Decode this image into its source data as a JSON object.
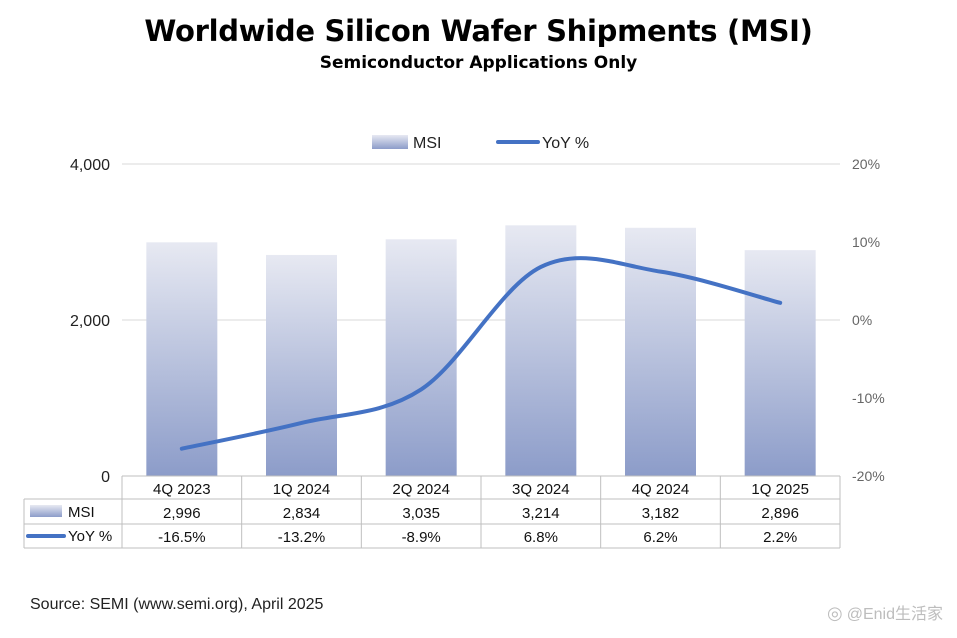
{
  "title": "Worldwide Silicon Wafer Shipments (MSI)",
  "subtitle": "Semiconductor Applications Only",
  "source": "Source: SEMI (www.semi.org), April 2025",
  "watermark": "@Enid生活家",
  "colors": {
    "bar_top": "#e7e9f2",
    "bar_bottom": "#8c9cc9",
    "line": "#4472c4",
    "grid": "#d9d9d9",
    "table_border": "#bfbfbf"
  },
  "chart_data": {
    "type": "bar+line",
    "categories": [
      "4Q 2023",
      "1Q 2024",
      "2Q 2024",
      "3Q 2024",
      "4Q 2024",
      "1Q 2025"
    ],
    "series": [
      {
        "name": "MSI",
        "type": "bar",
        "axis": "left",
        "values": [
          2996,
          2834,
          3035,
          3214,
          3182,
          2896
        ],
        "labels": [
          "2,996",
          "2,834",
          "3,035",
          "3,214",
          "3,182",
          "2,896"
        ]
      },
      {
        "name": "YoY %",
        "type": "line",
        "axis": "right",
        "values": [
          -16.5,
          -13.2,
          -8.9,
          6.8,
          6.2,
          2.2
        ],
        "labels": [
          "-16.5%",
          "-13.2%",
          "-8.9%",
          "6.8%",
          "6.2%",
          "2.2%"
        ]
      }
    ],
    "left_axis": {
      "min": 0,
      "max": 4000,
      "ticks": [
        0,
        2000,
        4000
      ],
      "tick_labels": [
        "0",
        "2,000",
        "4,000"
      ]
    },
    "right_axis": {
      "min": -20,
      "max": 20,
      "ticks": [
        -20,
        -10,
        0,
        10,
        20
      ],
      "tick_labels": [
        "-20%",
        "-10%",
        "0%",
        "10%",
        "20%"
      ]
    },
    "legend": {
      "position": "top-center",
      "entries": [
        "MSI",
        "YoY %"
      ]
    },
    "data_table": true
  }
}
